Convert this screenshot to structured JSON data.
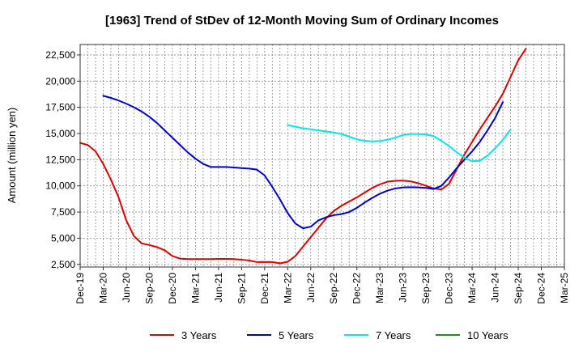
{
  "chart_data": {
    "type": "line",
    "title": "[1963]  Trend of StDev of 12-Month Moving Sum of Ordinary Incomes",
    "xlabel": "",
    "ylabel": "Amount (million yen)",
    "ylim": [
      2250,
      23500
    ],
    "yticks": [
      2500,
      5000,
      7500,
      10000,
      12500,
      15000,
      17500,
      20000,
      22500
    ],
    "ytick_labels": [
      "2,500",
      "5,000",
      "7,500",
      "10,000",
      "12,500",
      "15,000",
      "17,500",
      "20,000",
      "22,500"
    ],
    "x_labels": [
      "Dec-19",
      "Mar-20",
      "Jun-20",
      "Sep-20",
      "Dec-20",
      "Mar-21",
      "Jun-21",
      "Sep-21",
      "Dec-21",
      "Mar-22",
      "Jun-22",
      "Sep-22",
      "Dec-22",
      "Mar-23",
      "Jun-23",
      "Sep-23",
      "Dec-23",
      "Mar-24",
      "Jun-24",
      "Sep-24",
      "Dec-24",
      "Mar-25"
    ],
    "grid": true,
    "legend_position": "bottom",
    "series": [
      {
        "name": "3 Years",
        "color": "#dd0000",
        "start_month": 0,
        "values": [
          14100,
          13900,
          13300,
          12100,
          10600,
          8900,
          6700,
          5200,
          4500,
          4350,
          4150,
          3850,
          3300,
          3050,
          3000,
          3000,
          3000,
          3000,
          3020,
          3020,
          3000,
          2950,
          2870,
          2720,
          2730,
          2720,
          2600,
          2750,
          3300,
          4200,
          5100,
          6000,
          6900,
          7600,
          8100,
          8500,
          8900,
          9350,
          9800,
          10150,
          10400,
          10480,
          10500,
          10430,
          10250,
          10000,
          9750,
          9650,
          10200,
          11600,
          13000,
          14200,
          15400,
          16500,
          17600,
          18800,
          20400,
          22000,
          23100
        ]
      },
      {
        "name": "5 Years",
        "color": "#0000cc",
        "start_month": 3,
        "values": [
          18600,
          18400,
          18150,
          17850,
          17500,
          17100,
          16600,
          16000,
          15300,
          14600,
          13900,
          13200,
          12600,
          12100,
          11800,
          11800,
          11800,
          11750,
          11700,
          11650,
          11550,
          11000,
          9900,
          8700,
          7400,
          6400,
          5950,
          6100,
          6700,
          7000,
          7200,
          7300,
          7500,
          7900,
          8400,
          8850,
          9250,
          9550,
          9750,
          9850,
          9870,
          9850,
          9800,
          9700,
          10000,
          10800,
          11700,
          12500,
          13300,
          14200,
          15300,
          16500,
          18000
        ]
      },
      {
        "name": "7 Years",
        "color": "#00e8e8",
        "start_month": 27,
        "values": [
          15800,
          15650,
          15500,
          15400,
          15300,
          15200,
          15100,
          14950,
          14700,
          14450,
          14300,
          14250,
          14280,
          14400,
          14600,
          14850,
          14950,
          14950,
          14900,
          14750,
          14300,
          13800,
          13200,
          12700,
          12350,
          12400,
          12900,
          13600,
          14400,
          15400
        ]
      },
      {
        "name": "10 Years",
        "color": "#228b22",
        "start_month": 0,
        "values": []
      }
    ]
  }
}
